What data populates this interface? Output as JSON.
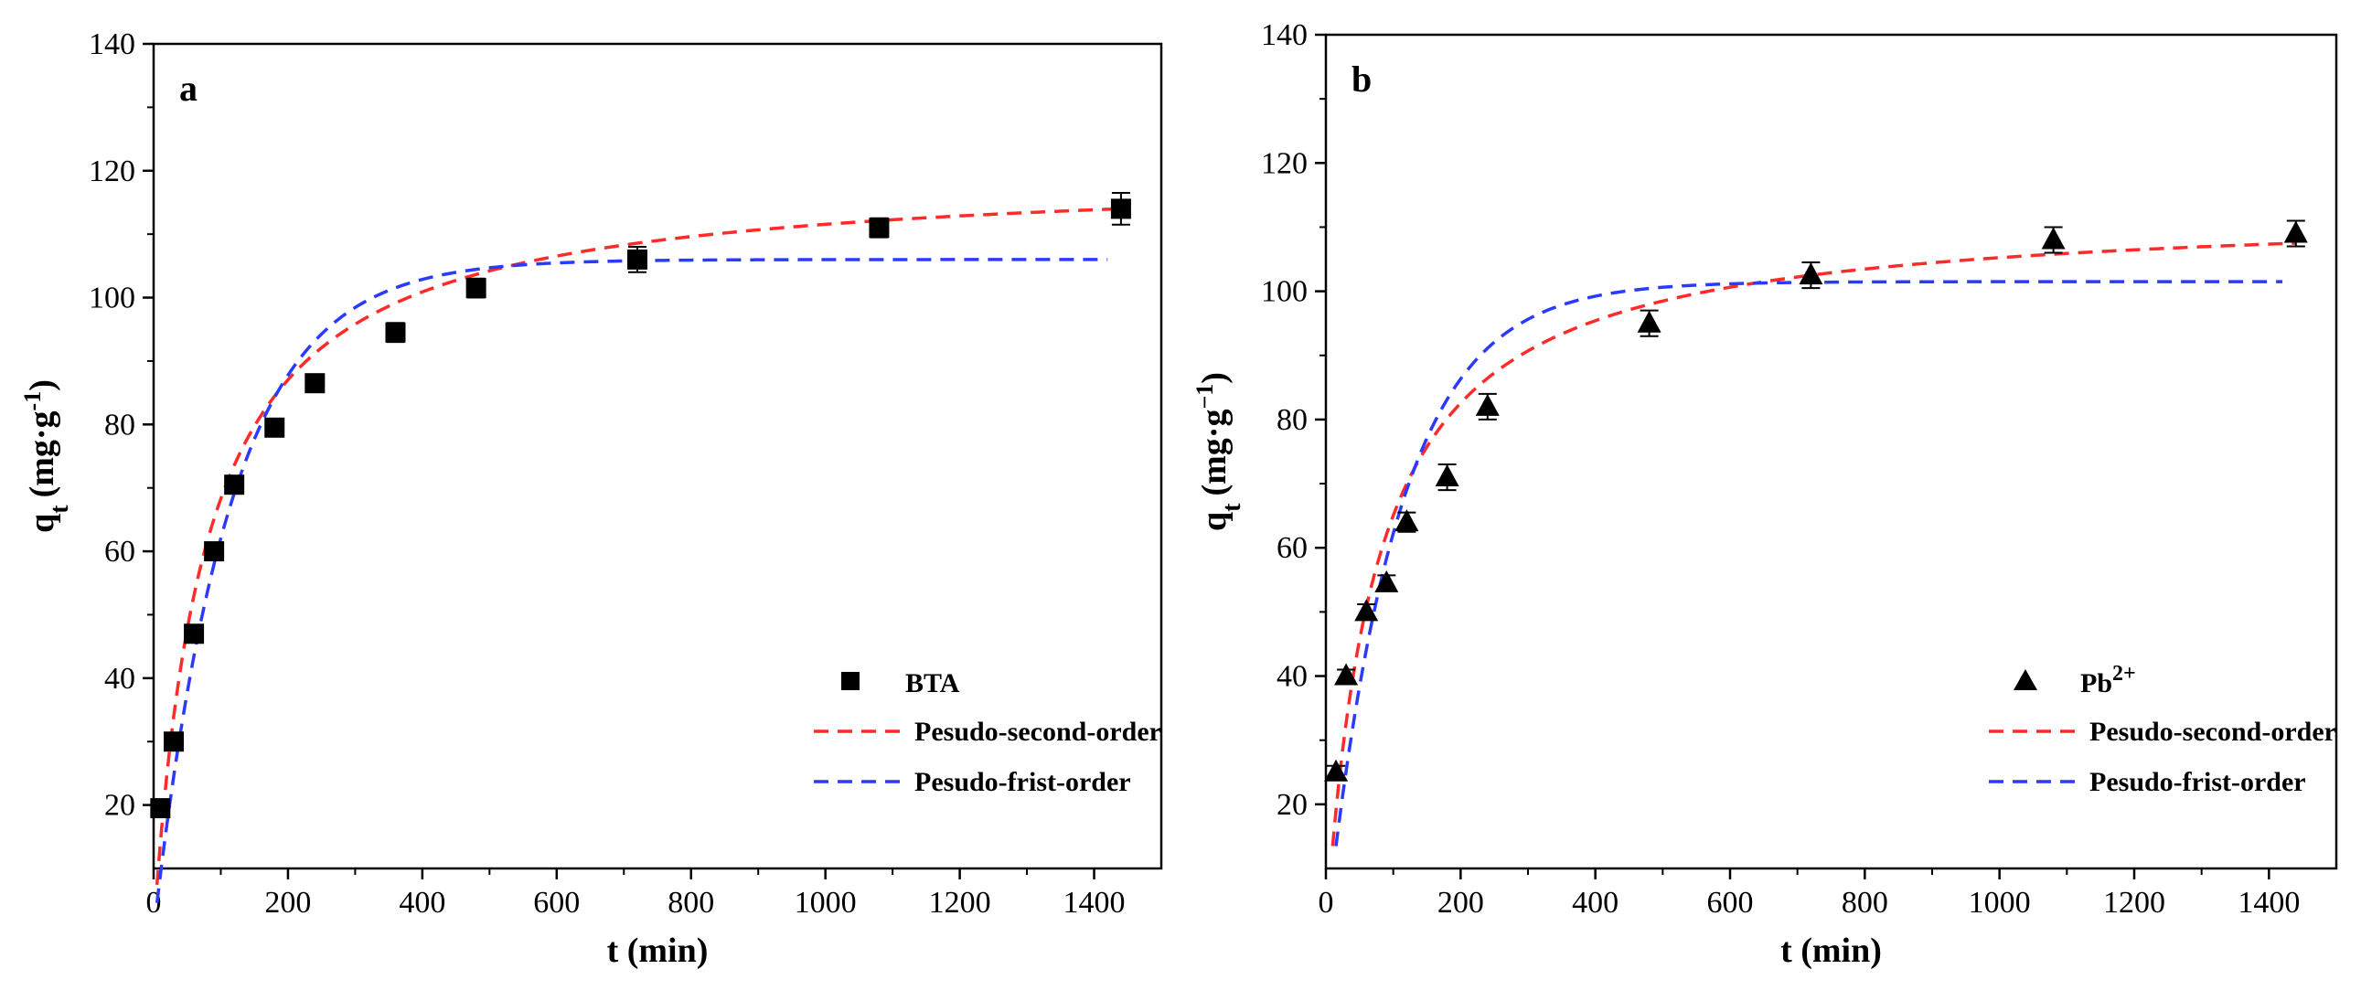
{
  "chart_data": [
    {
      "type": "scatter",
      "panel_label": "a",
      "xlabel": "t (min)",
      "ylabel_main": "q",
      "ylabel_sub": "t",
      "ylabel_unit": "(mg·g",
      "ylabel_sup": "-1",
      "ylabel_close": ")",
      "xlim": [
        0,
        1500
      ],
      "ylim": [
        10,
        140
      ],
      "xticks": [
        0,
        200,
        400,
        600,
        800,
        1000,
        1200,
        1400
      ],
      "yticks": [
        20,
        40,
        60,
        80,
        100,
        120,
        140
      ],
      "legend_position": "bottom-right",
      "marker": "square",
      "series": [
        {
          "name": "BTA",
          "kind": "points",
          "x": [
            10,
            30,
            60,
            90,
            120,
            180,
            240,
            360,
            480,
            720,
            1080,
            1440
          ],
          "y": [
            19.5,
            30,
            47,
            60,
            70.5,
            79.5,
            86.5,
            94.5,
            101.5,
            106,
            111,
            114
          ],
          "err": [
            1.0,
            1.2,
            1.2,
            1.2,
            1.2,
            1.2,
            1.2,
            1.5,
            1.5,
            2.0,
            1.5,
            2.5
          ]
        },
        {
          "name": "Pesudo-second-order",
          "kind": "curve",
          "model": "pso",
          "qe": 120,
          "k": 0.00011,
          "x_start": 5,
          "x_end": 1440,
          "color": "#ff2a2a"
        },
        {
          "name": "Pesudo-frist-order",
          "kind": "curve",
          "model": "pfo",
          "qe": 106,
          "k": 0.0088,
          "x_start": 5,
          "x_end": 1420,
          "color": "#2a3aff"
        }
      ]
    },
    {
      "type": "scatter",
      "panel_label": "b",
      "xlabel": "t (min)",
      "ylabel_main": "q",
      "ylabel_sub": "t",
      "ylabel_unit": "(mg·g",
      "ylabel_sup": "−1",
      "ylabel_close": ")",
      "xlim": [
        0,
        1500
      ],
      "ylim": [
        10,
        140
      ],
      "xticks": [
        0,
        200,
        400,
        600,
        800,
        1000,
        1200,
        1400
      ],
      "yticks": [
        20,
        40,
        60,
        80,
        100,
        120,
        140
      ],
      "legend_position": "bottom-right",
      "marker": "triangle",
      "series": [
        {
          "name": "Pb",
          "name_sup": "2+",
          "kind": "points",
          "x": [
            15,
            30,
            60,
            90,
            120,
            180,
            240,
            480,
            720,
            1080,
            1440
          ],
          "y": [
            25,
            40,
            50,
            54.5,
            64,
            71,
            82,
            95,
            102.5,
            108,
            109
          ],
          "err": [
            1.0,
            1.0,
            1.2,
            1.2,
            1.5,
            2.0,
            2.0,
            2.0,
            2.0,
            2.0,
            2.0
          ]
        },
        {
          "name": "Pesudo-second-order",
          "kind": "curve",
          "model": "pso",
          "qe": 113,
          "k": 0.00012,
          "x_start": 10,
          "x_end": 1440,
          "color": "#ff2a2a"
        },
        {
          "name": "Pesudo-frist-order",
          "kind": "curve",
          "model": "pfo",
          "qe": 101.5,
          "k": 0.0095,
          "x_start": 15,
          "x_end": 1420,
          "color": "#2a3aff"
        }
      ]
    }
  ]
}
